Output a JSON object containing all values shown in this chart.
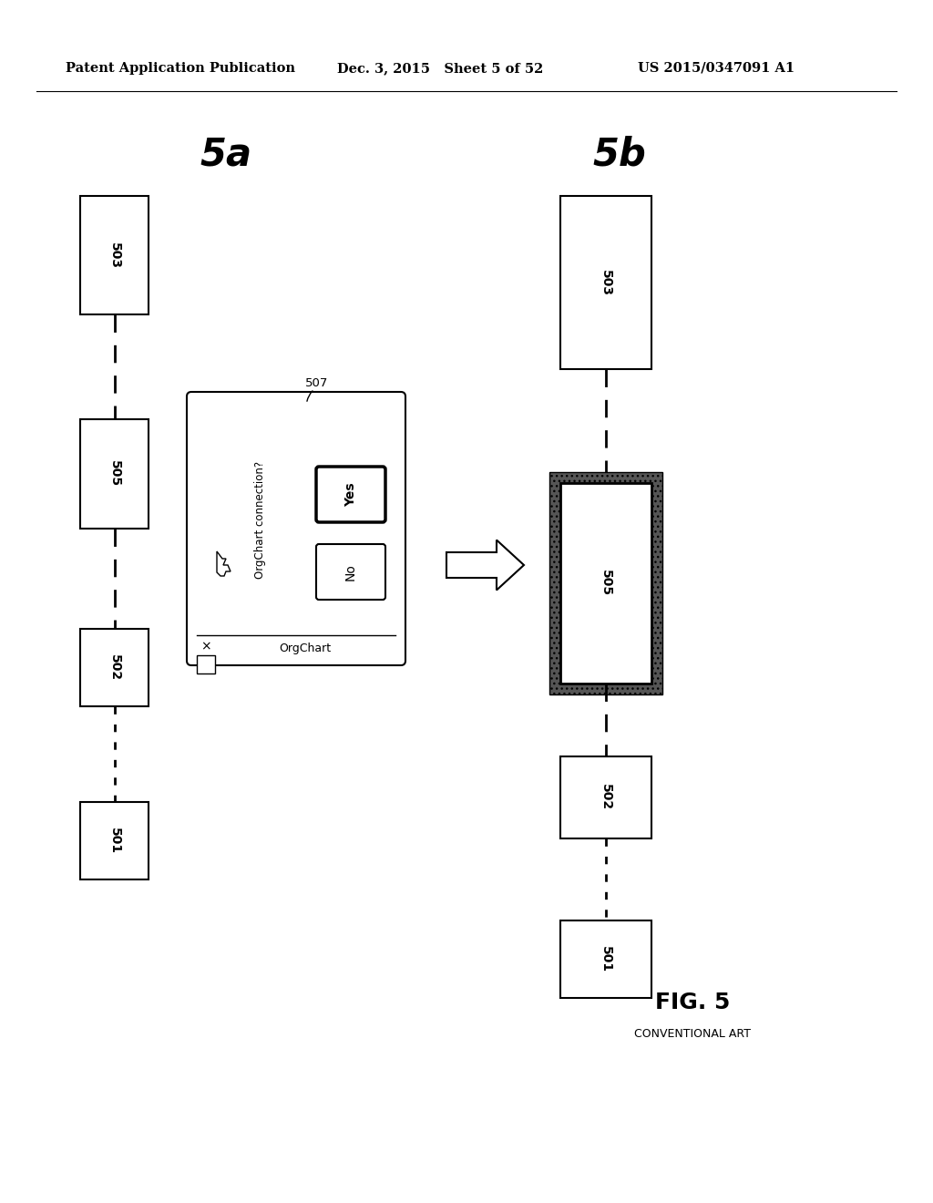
{
  "header_left": "Patent Application Publication",
  "header_mid": "Dec. 3, 2015   Sheet 5 of 52",
  "header_right": "US 2015/0347091 A1",
  "fig_label": "FIG. 5",
  "conventional_art": "CONVENTIONAL ART",
  "label_5a": "5a",
  "label_5b": "5b",
  "background_color": "#ffffff"
}
